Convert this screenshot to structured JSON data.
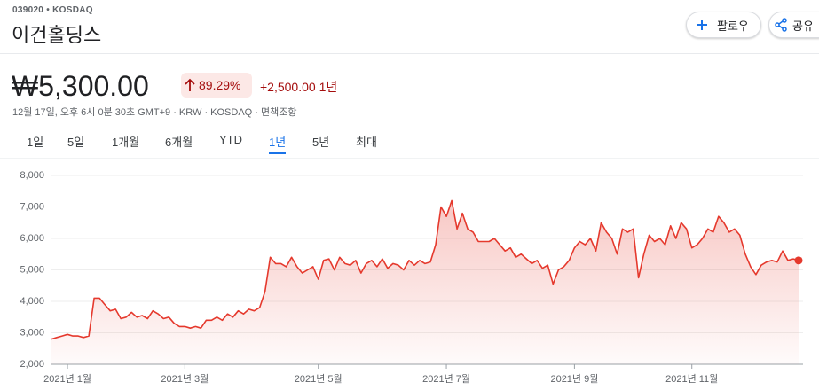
{
  "header": {
    "ticker": "039020 • KOSDAQ",
    "name": "이건홀딩스"
  },
  "buttons": {
    "follow": "팔로우",
    "share": "공유"
  },
  "quote": {
    "price": "₩5,300.00",
    "change_percent": "89.29%",
    "change": "+2,500.00",
    "change_period": "1년",
    "timestamp": "12월 17일, 오후 6시 0분 30초 GMT+9 · KRW · KOSDAQ · 면책조항"
  },
  "tabs": [
    "1일",
    "5일",
    "1개월",
    "6개월",
    "YTD",
    "1년",
    "5년",
    "최대"
  ],
  "selected_tab": 5,
  "chart_data": {
    "type": "line",
    "color": "#e5392d",
    "grid": true,
    "values": [
      2800,
      2850,
      2900,
      2950,
      2900,
      2900,
      2850,
      2900,
      4100,
      4100,
      3900,
      3700,
      3750,
      3450,
      3500,
      3650,
      3500,
      3550,
      3450,
      3700,
      3600,
      3450,
      3500,
      3300,
      3200,
      3200,
      3150,
      3200,
      3150,
      3400,
      3400,
      3500,
      3400,
      3600,
      3500,
      3700,
      3600,
      3750,
      3700,
      3800,
      4300,
      5400,
      5200,
      5200,
      5100,
      5400,
      5100,
      4900,
      5000,
      5100,
      4700,
      5300,
      5350,
      5000,
      5400,
      5200,
      5150,
      5300,
      4900,
      5200,
      5300,
      5100,
      5350,
      5050,
      5200,
      5150,
      5000,
      5300,
      5150,
      5300,
      5200,
      5250,
      5800,
      7000,
      6700,
      7200,
      6300,
      6800,
      6300,
      6200,
      5900,
      5900,
      5900,
      6000,
      5800,
      5600,
      5700,
      5400,
      5500,
      5350,
      5200,
      5300,
      5050,
      5150,
      4550,
      5000,
      5100,
      5300,
      5700,
      5900,
      5800,
      6000,
      5600,
      6500,
      6200,
      6000,
      5500,
      6300,
      6200,
      6300,
      4750,
      5500,
      6100,
      5900,
      6000,
      5800,
      6400,
      6000,
      6500,
      6300,
      5700,
      5800,
      6000,
      6300,
      6200,
      6700,
      6500,
      6200,
      6300,
      6100,
      5500,
      5100,
      4850,
      5150,
      5250,
      5300,
      5250,
      5600,
      5300,
      5350,
      5300
    ],
    "xlim": [
      0,
      140
    ],
    "xticks": [
      {
        "value": 3,
        "label": "2021년 1월"
      },
      {
        "value": 25,
        "label": "2021년 3월"
      },
      {
        "value": 50,
        "label": "2021년 5월"
      },
      {
        "value": 74,
        "label": "2021년 7월"
      },
      {
        "value": 98,
        "label": "2021년 9월"
      },
      {
        "value": 120,
        "label": "2021년 11월"
      }
    ],
    "ylim": [
      2000,
      8000
    ],
    "yticks": [
      {
        "value": 2000,
        "label": "2,000"
      },
      {
        "value": 3000,
        "label": "3,000"
      },
      {
        "value": 4000,
        "label": "4,000"
      },
      {
        "value": 5000,
        "label": "5,000"
      },
      {
        "value": 6000,
        "label": "6,000"
      },
      {
        "value": 7000,
        "label": "7,000"
      },
      {
        "value": 8000,
        "label": "8,000"
      }
    ]
  }
}
